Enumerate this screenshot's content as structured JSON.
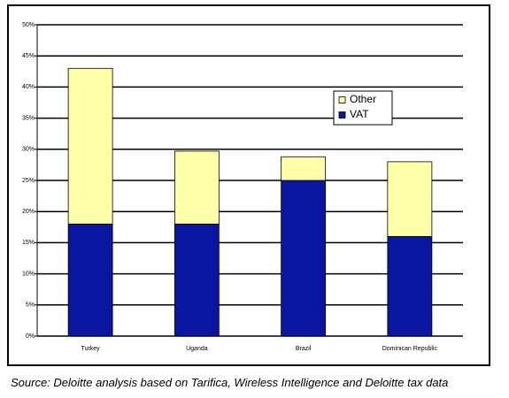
{
  "chart_data": {
    "type": "stacked-bar",
    "source": "Source: Deloitte analysis based on Tarifica, Wireless Intelligence and Deloitte tax data",
    "categories": [
      "Turkey",
      "Uganda",
      "Brazil",
      "Dominican Republic"
    ],
    "series": [
      {
        "name": "VAT",
        "color": "#0b16a0",
        "values": [
          18,
          18,
          25,
          16
        ]
      },
      {
        "name": "Other",
        "color": "#ffffaa",
        "values": [
          25,
          11.7,
          3.8,
          12
        ]
      }
    ],
    "ylim": [
      0,
      50
    ],
    "yticks": [
      {
        "value": 0,
        "label": "0%"
      },
      {
        "value": 5,
        "label": "5%"
      },
      {
        "value": 10,
        "label": "10%"
      },
      {
        "value": 15,
        "label": "15%"
      },
      {
        "value": 20,
        "label": "20%"
      },
      {
        "value": 25,
        "label": "25%"
      },
      {
        "value": 30,
        "label": "30%"
      },
      {
        "value": 35,
        "label": "35%"
      },
      {
        "value": 40,
        "label": "40%"
      },
      {
        "value": 45,
        "label": "45%"
      },
      {
        "value": 50,
        "label": "50%"
      }
    ],
    "grid": true
  }
}
